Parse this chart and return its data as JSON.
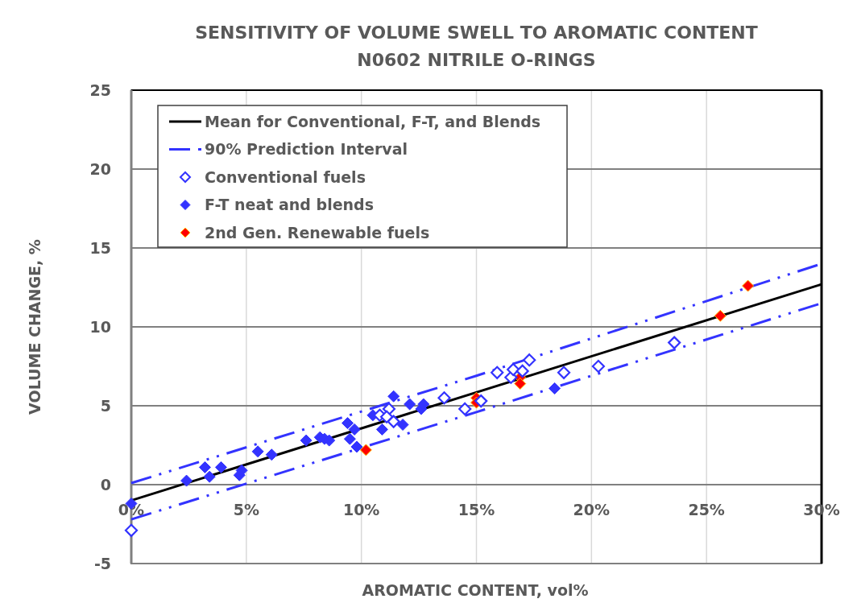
{
  "chart_data": {
    "type": "scatter",
    "title": "SENSITIVITY OF VOLUME SWELL TO AROMATIC CONTENT",
    "subtitle": "N0602 NITRILE O-RINGS",
    "xlabel": "AROMATIC CONTENT, vol%",
    "ylabel": "VOLUME CHANGE, %",
    "xlim": [
      0,
      30
    ],
    "ylim": [
      -5,
      25
    ],
    "xticks": [
      {
        "value": 0,
        "label": "0%"
      },
      {
        "value": 5,
        "label": "5%"
      },
      {
        "value": 10,
        "label": "10%"
      },
      {
        "value": 15,
        "label": "15%"
      },
      {
        "value": 20,
        "label": "20%"
      },
      {
        "value": 25,
        "label": "25%"
      },
      {
        "value": 30,
        "label": "30%"
      }
    ],
    "yticks": [
      -5,
      0,
      5,
      10,
      15,
      20,
      25
    ],
    "grid": true,
    "legend": "top left",
    "marker": "diamond",
    "series": [
      {
        "type": "line",
        "name": "Mean for Conventional, F-T, and Blends",
        "color": "#000000",
        "line_style": "solid",
        "marker": "none",
        "x": [
          0,
          30
        ],
        "values": [
          -1.0,
          12.7
        ]
      },
      {
        "type": "line",
        "name": "90% Prediction Interval",
        "color": "#3333ff",
        "line_style": "dashed",
        "marker": "none",
        "x": [
          0,
          15,
          30
        ],
        "values": [
          0.1,
          6.9,
          14.0
        ]
      },
      {
        "type": "line",
        "color": "#3333ff",
        "line_style": "dashed",
        "marker": "none",
        "x": [
          0,
          15,
          30
        ],
        "values": [
          -2.2,
          4.6,
          11.5
        ]
      },
      {
        "type": "scatter",
        "name": "Conventional fuels",
        "color": "#3333ff",
        "marker": "diamond-open",
        "x": [
          0,
          10.8,
          11.2,
          11.4,
          11.1,
          13.6,
          14.5,
          15.2,
          15.9,
          16.5,
          16.6,
          17.0,
          17.3,
          18.8,
          20.3,
          23.6
        ],
        "values": [
          -2.9,
          4.4,
          4.8,
          4.0,
          4.3,
          5.5,
          4.8,
          5.3,
          7.1,
          6.8,
          7.3,
          7.2,
          7.9,
          7.1,
          7.5,
          9.0
        ]
      },
      {
        "type": "scatter",
        "name": "F-T neat and blends",
        "color": "#3333ff",
        "x": [
          0,
          2.4,
          3.2,
          3.4,
          3.9,
          4.7,
          4.8,
          5.5,
          6.1,
          7.6,
          8.2,
          8.4,
          8.6,
          9.4,
          9.7,
          9.5,
          9.8,
          10.5,
          10.9,
          11.4,
          11.8,
          12.1,
          12.6,
          12.7,
          18.4
        ],
        "values": [
          -1.2,
          0.25,
          1.1,
          0.5,
          1.1,
          0.6,
          0.9,
          2.1,
          1.9,
          2.8,
          3.0,
          2.9,
          2.8,
          3.9,
          3.5,
          2.9,
          2.4,
          4.4,
          3.5,
          5.6,
          3.8,
          5.1,
          4.8,
          5.1,
          6.1
        ]
      },
      {
        "type": "scatter",
        "name": "2nd Gen. Renewable fuels",
        "color": "#ff0000",
        "x": [
          10.2,
          15.0,
          15.0,
          16.9,
          16.9,
          25.6,
          26.8
        ],
        "values": [
          2.2,
          5.5,
          5.2,
          6.8,
          6.4,
          10.7,
          12.6
        ]
      }
    ]
  }
}
